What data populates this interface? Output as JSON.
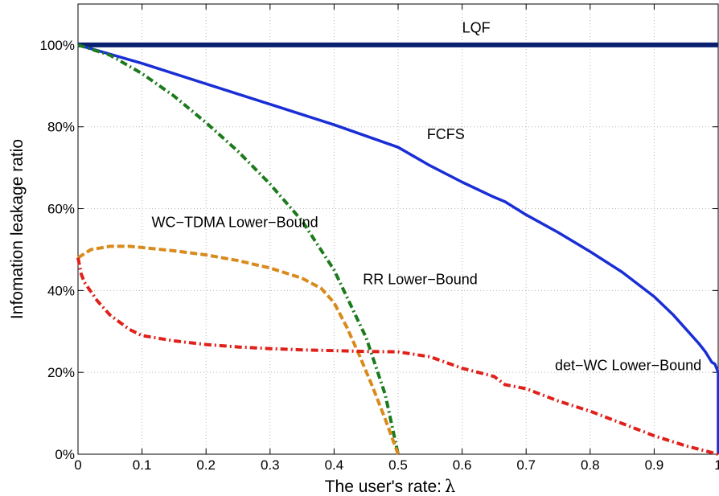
{
  "chart_data": {
    "type": "line",
    "xlabel": "The user's rate:",
    "xlabel_symbol": "λ",
    "ylabel": "Infomation leakage ratio",
    "xlim": [
      0,
      1
    ],
    "ylim": [
      0,
      1.1
    ],
    "grid": true,
    "x_ticks": [
      0,
      0.1,
      0.2,
      0.3,
      0.4,
      0.5,
      0.6,
      0.7,
      0.8,
      0.9,
      1
    ],
    "x_tick_labels": [
      "0",
      "0.1",
      "0.2",
      "0.3",
      "0.4",
      "0.5",
      "0.6",
      "0.7",
      "0.8",
      "0.9",
      "1"
    ],
    "y_ticks": [
      0,
      0.2,
      0.4,
      0.6,
      0.8,
      1.0
    ],
    "y_tick_labels": [
      "0%",
      "20%",
      "40%",
      "60%",
      "80%",
      "100%"
    ],
    "series": [
      {
        "name": "LQF",
        "color": "#0a1f6e",
        "style": "solid-thick",
        "x": [
          0,
          1
        ],
        "y": [
          1.0,
          1.0
        ]
      },
      {
        "name": "FCFS",
        "color": "#1a2ed6",
        "style": "solid",
        "x": [
          0,
          0.1,
          0.2,
          0.3,
          0.4,
          0.5,
          0.55,
          0.6,
          0.65,
          0.667,
          0.7,
          0.75,
          0.8,
          0.85,
          0.9,
          0.93,
          0.95,
          0.97,
          0.98,
          0.99,
          0.995,
          1.0,
          1.0
        ],
        "y": [
          1.0,
          0.955,
          0.905,
          0.855,
          0.805,
          0.75,
          0.705,
          0.665,
          0.628,
          0.617,
          0.585,
          0.542,
          0.495,
          0.445,
          0.385,
          0.34,
          0.305,
          0.27,
          0.25,
          0.225,
          0.22,
          0.2,
          0.0
        ]
      },
      {
        "name": "RR Lower-Bound",
        "color": "#1b7a1b",
        "style": "dash-dot",
        "x": [
          0,
          0.05,
          0.1,
          0.15,
          0.2,
          0.25,
          0.3,
          0.35,
          0.4,
          0.45,
          0.48,
          0.5
        ],
        "y": [
          1.0,
          0.975,
          0.93,
          0.875,
          0.81,
          0.74,
          0.66,
          0.57,
          0.45,
          0.285,
          0.145,
          0.0
        ]
      },
      {
        "name": "WC-TDMA Lower-Bound",
        "color": "#d98a1c",
        "style": "dashed",
        "x": [
          0,
          0.02,
          0.05,
          0.08,
          0.1,
          0.15,
          0.2,
          0.25,
          0.3,
          0.35,
          0.38,
          0.4,
          0.42,
          0.44,
          0.46,
          0.48,
          0.5
        ],
        "y": [
          0.48,
          0.5,
          0.508,
          0.508,
          0.505,
          0.497,
          0.487,
          0.473,
          0.455,
          0.43,
          0.405,
          0.37,
          0.31,
          0.24,
          0.165,
          0.085,
          0.0
        ]
      },
      {
        "name": "det-WC Lower-Bound",
        "color": "#e0201a",
        "style": "dash-dot",
        "x": [
          0,
          0.005,
          0.01,
          0.03,
          0.05,
          0.08,
          0.1,
          0.15,
          0.2,
          0.25,
          0.3,
          0.35,
          0.4,
          0.45,
          0.5,
          0.55,
          0.6,
          0.65,
          0.667,
          0.7,
          0.75,
          0.8,
          0.85,
          0.9,
          0.95,
          1.0
        ],
        "y": [
          0.48,
          0.44,
          0.42,
          0.375,
          0.34,
          0.305,
          0.29,
          0.277,
          0.268,
          0.262,
          0.258,
          0.255,
          0.253,
          0.251,
          0.25,
          0.238,
          0.21,
          0.19,
          0.17,
          0.16,
          0.13,
          0.105,
          0.075,
          0.045,
          0.02,
          0.0
        ]
      }
    ],
    "annotations": [
      {
        "text": "LQF",
        "x": 0.6,
        "y": 1.03
      },
      {
        "text": "FCFS",
        "x": 0.545,
        "y": 0.77
      },
      {
        "text": "WC−TDMA Lower−Bound",
        "x": 0.115,
        "y": 0.555
      },
      {
        "text": "RR Lower−Bound",
        "x": 0.445,
        "y": 0.415
      },
      {
        "text": "det−WC Lower−Bound",
        "x": 0.745,
        "y": 0.205
      }
    ]
  }
}
